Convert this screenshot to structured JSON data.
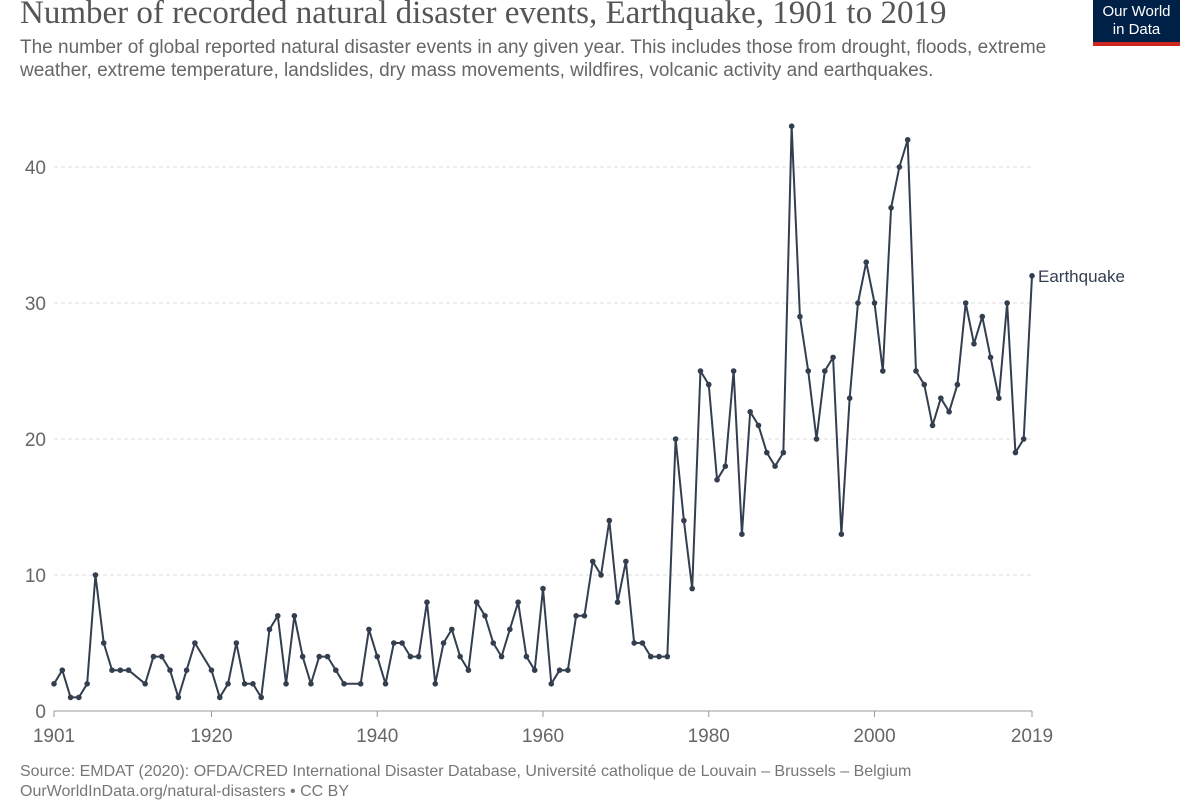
{
  "header": {
    "title": "Number of recorded natural disaster events, Earthquake, 1901 to 2019",
    "subtitle": "The number of global reported natural disaster events in any given year. This includes those from drought, floods, extreme weather, extreme temperature, landslides, dry mass movements, wildfires, volcanic activity and earthquakes.",
    "logo_line1": "Our World",
    "logo_line2": "in Data"
  },
  "footer": {
    "source_line1": "Source: EMDAT (2020): OFDA/CRED International Disaster Database, Université catholique de Louvain – Brussels – Belgium",
    "source_line2": "OurWorldInData.org/natural-disasters • CC BY"
  },
  "colors": {
    "line": "#333e4f",
    "grid": "#dddddd",
    "axis": "#666666",
    "logo_bg": "#002147",
    "logo_accent": "#ce261e"
  },
  "chart_data": {
    "type": "line",
    "title": "Number of recorded natural disaster events, Earthquake, 1901 to 2019",
    "xlabel": "",
    "ylabel": "",
    "xlim": [
      1901,
      2019
    ],
    "ylim": [
      0,
      45
    ],
    "x_ticks": [
      "1901",
      "1920",
      "1940",
      "1960",
      "1980",
      "2000",
      "2019"
    ],
    "y_ticks": [
      "0",
      "10",
      "20",
      "30",
      "40"
    ],
    "grid": "horizontal dashed",
    "series": [
      {
        "name": "Earthquake",
        "points": [
          [
            1901,
            2
          ],
          [
            1902,
            3
          ],
          [
            1903,
            1
          ],
          [
            1904,
            1
          ],
          [
            1905,
            2
          ],
          [
            1906,
            10
          ],
          [
            1907,
            5
          ],
          [
            1908,
            3
          ],
          [
            1909,
            3
          ],
          [
            1910,
            3
          ],
          [
            1912,
            2
          ],
          [
            1913,
            4
          ],
          [
            1914,
            4
          ],
          [
            1915,
            3
          ],
          [
            1916,
            1
          ],
          [
            1917,
            3
          ],
          [
            1918,
            5
          ],
          [
            1920,
            3
          ],
          [
            1921,
            1
          ],
          [
            1922,
            2
          ],
          [
            1923,
            5
          ],
          [
            1924,
            2
          ],
          [
            1925,
            2
          ],
          [
            1926,
            1
          ],
          [
            1927,
            6
          ],
          [
            1928,
            7
          ],
          [
            1929,
            2
          ],
          [
            1930,
            7
          ],
          [
            1931,
            4
          ],
          [
            1932,
            2
          ],
          [
            1933,
            4
          ],
          [
            1934,
            4
          ],
          [
            1935,
            3
          ],
          [
            1936,
            2
          ],
          [
            1938,
            2
          ],
          [
            1939,
            6
          ],
          [
            1940,
            4
          ],
          [
            1941,
            2
          ],
          [
            1942,
            5
          ],
          [
            1943,
            5
          ],
          [
            1944,
            4
          ],
          [
            1945,
            4
          ],
          [
            1946,
            8
          ],
          [
            1947,
            2
          ],
          [
            1948,
            5
          ],
          [
            1949,
            6
          ],
          [
            1950,
            4
          ],
          [
            1951,
            3
          ],
          [
            1952,
            8
          ],
          [
            1953,
            7
          ],
          [
            1954,
            5
          ],
          [
            1955,
            4
          ],
          [
            1956,
            6
          ],
          [
            1957,
            8
          ],
          [
            1958,
            4
          ],
          [
            1959,
            3
          ],
          [
            1960,
            9
          ],
          [
            1961,
            2
          ],
          [
            1962,
            3
          ],
          [
            1963,
            3
          ],
          [
            1964,
            7
          ],
          [
            1965,
            7
          ],
          [
            1966,
            11
          ],
          [
            1967,
            10
          ],
          [
            1968,
            14
          ],
          [
            1969,
            8
          ],
          [
            1970,
            11
          ],
          [
            1971,
            5
          ],
          [
            1972,
            5
          ],
          [
            1973,
            4
          ],
          [
            1974,
            4
          ],
          [
            1975,
            4
          ],
          [
            1976,
            20
          ],
          [
            1977,
            14
          ],
          [
            1978,
            9
          ],
          [
            1979,
            25
          ],
          [
            1980,
            24
          ],
          [
            1981,
            17
          ],
          [
            1982,
            18
          ],
          [
            1983,
            25
          ],
          [
            1984,
            13
          ],
          [
            1985,
            22
          ],
          [
            1986,
            21
          ],
          [
            1987,
            19
          ],
          [
            1988,
            18
          ],
          [
            1989,
            19
          ],
          [
            1990,
            43
          ],
          [
            1991,
            29
          ],
          [
            1992,
            25
          ],
          [
            1993,
            20
          ],
          [
            1994,
            25
          ],
          [
            1995,
            26
          ],
          [
            1996,
            13
          ],
          [
            1997,
            23
          ],
          [
            1998,
            30
          ],
          [
            1999,
            33
          ],
          [
            2000,
            30
          ],
          [
            2001,
            25
          ],
          [
            2002,
            37
          ],
          [
            2003,
            40
          ],
          [
            2004,
            42
          ],
          [
            2005,
            25
          ],
          [
            2006,
            24
          ],
          [
            2007,
            21
          ],
          [
            2008,
            23
          ],
          [
            2009,
            22
          ],
          [
            2010,
            24
          ],
          [
            2011,
            30
          ],
          [
            2012,
            27
          ],
          [
            2013,
            29
          ],
          [
            2014,
            26
          ],
          [
            2015,
            23
          ],
          [
            2016,
            30
          ],
          [
            2017,
            19
          ],
          [
            2018,
            20
          ],
          [
            2019,
            32
          ]
        ]
      }
    ]
  }
}
